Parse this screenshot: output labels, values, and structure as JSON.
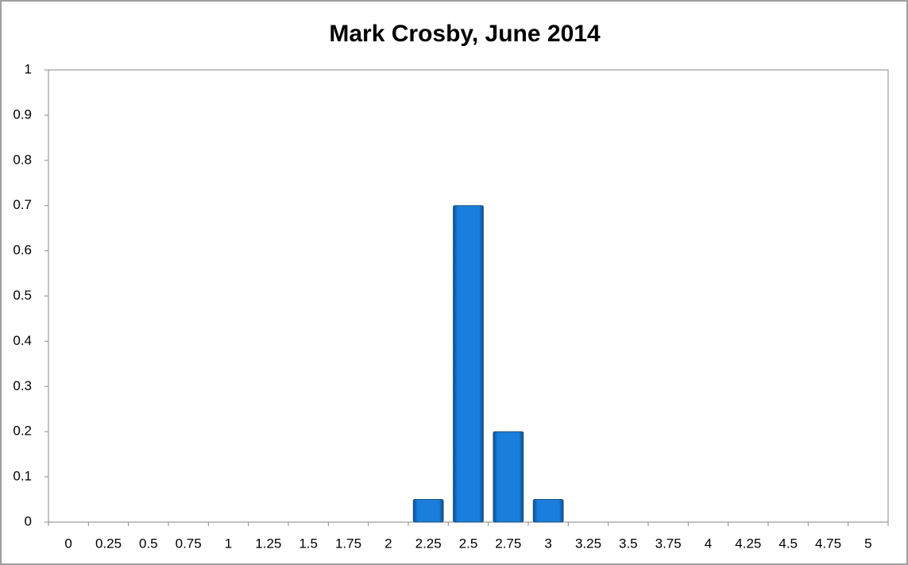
{
  "chart_data": {
    "type": "bar",
    "title": "Mark Crosby, June 2014",
    "categories": [
      "0",
      "0.25",
      "0.5",
      "0.75",
      "1",
      "1.25",
      "1.5",
      "1.75",
      "2",
      "2.25",
      "2.5",
      "2.75",
      "3",
      "3.25",
      "3.5",
      "3.75",
      "4",
      "4.25",
      "4.5",
      "4.75",
      "5"
    ],
    "values": [
      0,
      0,
      0,
      0,
      0,
      0,
      0,
      0,
      0,
      0.05,
      0.7,
      0.2,
      0.05,
      0,
      0,
      0,
      0,
      0,
      0,
      0,
      0
    ],
    "color": "#0b6fc8",
    "ylim": [
      0,
      1
    ],
    "yticks": [
      0,
      0.1,
      0.2,
      0.3,
      0.4,
      0.5,
      0.6,
      0.7,
      0.8,
      0.9,
      1
    ],
    "grid": false
  }
}
